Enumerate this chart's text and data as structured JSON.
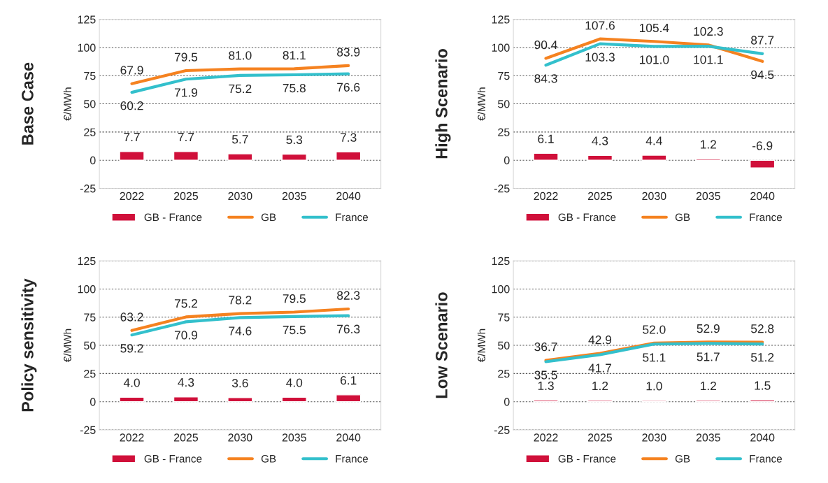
{
  "chart_data": [
    {
      "type": "bar",
      "title": "Base Case",
      "ylabel": "€/MWh",
      "categories": [
        "2022",
        "2025",
        "2030",
        "2035",
        "2040"
      ],
      "ylim": [
        -25,
        125
      ],
      "yticks": [
        -25,
        0,
        25,
        50,
        75,
        100,
        125
      ],
      "grid": "y",
      "legend": "bottom",
      "series": [
        {
          "name": "GB - France",
          "color": "#d0103a",
          "values": [
            7.7,
            7.7,
            5.7,
            5.3,
            7.3
          ],
          "value_labels": [
            "7.7",
            "7.7",
            "5.7",
            "5.3",
            "7.3"
          ]
        },
        {
          "name": "GB",
          "type": "line",
          "color": "#f58220",
          "values": [
            67.9,
            79.5,
            81.0,
            81.1,
            83.9
          ],
          "value_labels": [
            "67.9",
            "79.5",
            "81.0",
            "81.1",
            "83.9"
          ]
        },
        {
          "name": "France",
          "type": "line",
          "color": "#33c0cc",
          "values": [
            60.2,
            71.9,
            75.2,
            75.8,
            76.6
          ],
          "value_labels": [
            "60.2",
            "71.9",
            "75.2",
            "75.8",
            "76.6"
          ]
        }
      ]
    },
    {
      "type": "bar",
      "title": "High Scenario",
      "ylabel": "€/MWh",
      "categories": [
        "2022",
        "2025",
        "2030",
        "2035",
        "2040"
      ],
      "ylim": [
        -25,
        125
      ],
      "yticks": [
        -25,
        0,
        25,
        50,
        75,
        100,
        125
      ],
      "grid": "y",
      "legend": "bottom",
      "series": [
        {
          "name": "GB - France",
          "color": "#d0103a",
          "values": [
            6.1,
            4.3,
            4.4,
            1.2,
            -6.9
          ],
          "value_labels": [
            "6.1",
            "4.3",
            "4.4",
            "1.2",
            "-6.9"
          ]
        },
        {
          "name": "GB",
          "type": "line",
          "color": "#f58220",
          "values": [
            90.4,
            107.6,
            105.4,
            102.3,
            87.7
          ],
          "value_labels": [
            "90.4",
            "107.6",
            "105.4",
            "102.3",
            "87.7"
          ]
        },
        {
          "name": "France",
          "type": "line",
          "color": "#33c0cc",
          "values": [
            84.3,
            103.3,
            101.0,
            101.1,
            94.5
          ],
          "value_labels": [
            "84.3",
            "103.3",
            "101.0",
            "101.1",
            "94.5"
          ]
        }
      ]
    },
    {
      "type": "bar",
      "title": "Policy sensitivity",
      "ylabel": "€/MWh",
      "categories": [
        "2022",
        "2025",
        "2030",
        "2035",
        "2040"
      ],
      "ylim": [
        -25,
        125
      ],
      "yticks": [
        -25,
        0,
        25,
        50,
        75,
        100,
        125
      ],
      "grid": "y",
      "legend": "bottom",
      "series": [
        {
          "name": "GB - France",
          "color": "#d0103a",
          "values": [
            4.0,
            4.3,
            3.6,
            4.0,
            6.1
          ],
          "value_labels": [
            "4.0",
            "4.3",
            "3.6",
            "4.0",
            "6.1"
          ]
        },
        {
          "name": "GB",
          "type": "line",
          "color": "#f58220",
          "values": [
            63.2,
            75.2,
            78.2,
            79.5,
            82.3
          ],
          "value_labels": [
            "63.2",
            "75.2",
            "78.2",
            "79.5",
            "82.3"
          ]
        },
        {
          "name": "France",
          "type": "line",
          "color": "#33c0cc",
          "values": [
            59.2,
            70.9,
            74.6,
            75.5,
            76.3
          ],
          "value_labels": [
            "59.2",
            "70.9",
            "74.6",
            "75.5",
            "76.3"
          ]
        }
      ]
    },
    {
      "type": "bar",
      "title": "Low Scenario",
      "ylabel": "€/MWh",
      "categories": [
        "2022",
        "2025",
        "2030",
        "2035",
        "2040"
      ],
      "ylim": [
        -25,
        125
      ],
      "yticks": [
        -25,
        0,
        25,
        50,
        75,
        100,
        125
      ],
      "grid": "y",
      "legend": "bottom",
      "series": [
        {
          "name": "GB - France",
          "color": "#d0103a",
          "values": [
            1.3,
            1.2,
            1.0,
            1.2,
            1.5
          ],
          "value_labels": [
            "1.3",
            "1.2",
            "1.0",
            "1.2",
            "1.5"
          ]
        },
        {
          "name": "GB",
          "type": "line",
          "color": "#f58220",
          "values": [
            36.7,
            42.9,
            52.0,
            52.9,
            52.8
          ],
          "value_labels": [
            "36.7",
            "42.9",
            "52.0",
            "52.9",
            "52.8"
          ]
        },
        {
          "name": "France",
          "type": "line",
          "color": "#33c0cc",
          "values": [
            35.5,
            41.7,
            51.1,
            51.7,
            51.2
          ],
          "value_labels": [
            "35.5",
            "41.7",
            "51.1",
            "51.7",
            "51.2"
          ]
        }
      ]
    }
  ]
}
